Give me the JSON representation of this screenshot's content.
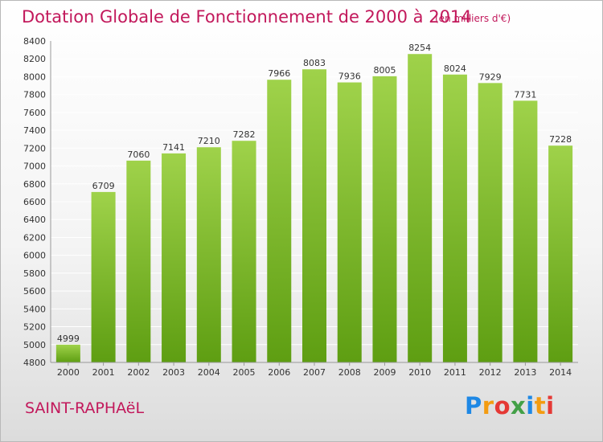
{
  "header": {
    "title": "Dotation Globale de Fonctionnement de 2000 à 2014",
    "unit_note": "(en milliers d'€)"
  },
  "footer": {
    "commune": "SAINT-RAPHAëL",
    "brand_letters": [
      "P",
      "r",
      "o",
      "x",
      "i",
      "t",
      "i"
    ],
    "brand_colors": [
      "#1e88e5",
      "#f39c12",
      "#e53935",
      "#43a047",
      "#1e88e5",
      "#f39c12",
      "#e53935"
    ]
  },
  "colors": {
    "bar_top": "#9fd24a",
    "bar_bottom": "#5e9e12",
    "text": "#333333",
    "grid": "#ffffff",
    "accent": "#c2185b"
  },
  "chart_data": {
    "type": "bar",
    "categories": [
      "2000",
      "2001",
      "2002",
      "2003",
      "2004",
      "2005",
      "2006",
      "2007",
      "2008",
      "2009",
      "2010",
      "2011",
      "2012",
      "2013",
      "2014"
    ],
    "values": [
      4999,
      6709,
      7060,
      7141,
      7210,
      7282,
      7966,
      8083,
      7936,
      8005,
      8254,
      8024,
      7929,
      7731,
      7228
    ],
    "title": "Dotation Globale de Fonctionnement de 2000 à 2014",
    "subtitle": "(en milliers d'€)",
    "xlabel": "",
    "ylabel": "",
    "ylim": [
      4800,
      8400
    ],
    "yticks": [
      4800,
      5000,
      5200,
      5400,
      5600,
      5800,
      6000,
      6200,
      6400,
      6600,
      6800,
      7000,
      7200,
      7400,
      7600,
      7800,
      8000,
      8200,
      8400
    ],
    "grid": true,
    "data_labels": true
  }
}
